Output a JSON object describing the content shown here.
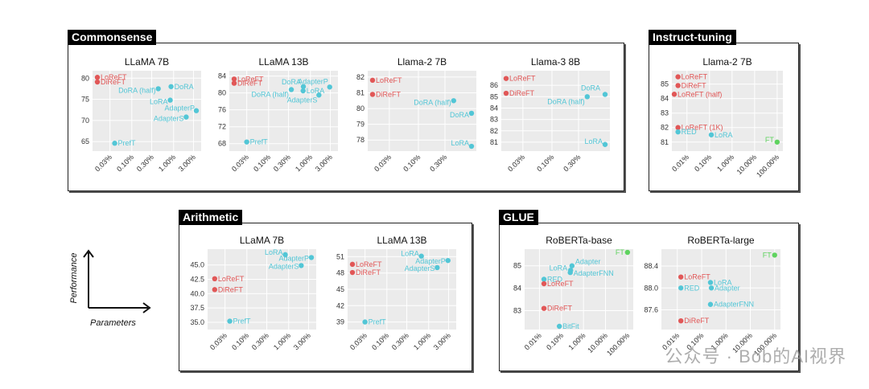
{
  "colors": {
    "red": "#e15757",
    "cyan": "#52c6d6",
    "green": "#5fd35f",
    "bg": "#ebebeb",
    "grid": "#ffffff"
  },
  "sections": {
    "commonsense": "Commonsense",
    "instruct": "Instruct-tuning",
    "arithmetic": "Arithmetic",
    "glue": "GLUE"
  },
  "legend": {
    "y": "Performance",
    "x": "Parameters"
  },
  "watermark": "公众号 · Bob的AI视界",
  "chart_data": [
    {
      "id": "cs1",
      "type": "scatter",
      "title": "LLaMA 7B",
      "xticks": [
        "0.03%",
        "0.10%",
        "0.30%",
        "1.00%",
        "3.00%"
      ],
      "xlog": [
        0.015,
        3.5
      ],
      "yticks": [
        65,
        70,
        75,
        80
      ],
      "ylim": [
        63.5,
        81
      ],
      "points": [
        {
          "name": "LoReFT",
          "x": 0.015,
          "y": 80.2,
          "c": "red"
        },
        {
          "name": "DiReFT",
          "x": 0.015,
          "y": 79.1,
          "c": "red"
        },
        {
          "name": "DoRA",
          "x": 0.87,
          "y": 78.0,
          "c": "cyan"
        },
        {
          "name": "DoRA (half)",
          "x": 0.43,
          "y": 77.5,
          "c": "cyan"
        },
        {
          "name": "LoRA",
          "x": 0.83,
          "y": 74.8,
          "c": "cyan"
        },
        {
          "name": "AdapterP",
          "x": 3.5,
          "y": 72.3,
          "c": "cyan"
        },
        {
          "name": "AdapterS",
          "x": 2.0,
          "y": 70.8,
          "c": "cyan"
        },
        {
          "name": "PrefT",
          "x": 0.039,
          "y": 64.6,
          "c": "cyan"
        }
      ]
    },
    {
      "id": "cs2",
      "type": "scatter",
      "title": "LLaMA 13B",
      "xticks": [
        "0.03%",
        "0.10%",
        "0.30%",
        "1.00%",
        "3.00%"
      ],
      "xlog": [
        0.015,
        3.5
      ],
      "yticks": [
        68,
        72,
        76,
        80,
        84
      ],
      "ylim": [
        67,
        84.5
      ],
      "points": [
        {
          "name": "LoReFT",
          "x": 0.015,
          "y": 83.3,
          "c": "red"
        },
        {
          "name": "DiReFT",
          "x": 0.015,
          "y": 82.3,
          "c": "red"
        },
        {
          "name": "AdapterP",
          "x": 2.9,
          "y": 81.4,
          "c": "cyan"
        },
        {
          "name": "DoRA",
          "x": 0.68,
          "y": 81.5,
          "c": "cyan"
        },
        {
          "name": "LoRA",
          "x": 0.67,
          "y": 80.5,
          "c": "cyan"
        },
        {
          "name": "DoRA (half)",
          "x": 0.35,
          "y": 80.8,
          "c": "cyan"
        },
        {
          "name": "AdapterS",
          "x": 1.6,
          "y": 79.5,
          "c": "cyan"
        },
        {
          "name": "PrefT",
          "x": 0.03,
          "y": 68.4,
          "c": "cyan"
        }
      ]
    },
    {
      "id": "cs3",
      "type": "scatter",
      "title": "Llama-2 7B",
      "xticks": [
        "0.03%",
        "0.10%",
        "0.30%"
      ],
      "xlog": [
        0.015,
        0.9
      ],
      "yticks": [
        78,
        79,
        80,
        81,
        82
      ],
      "ylim": [
        77.5,
        82.2
      ],
      "points": [
        {
          "name": "LoReFT",
          "x": 0.015,
          "y": 81.8,
          "c": "red"
        },
        {
          "name": "DiReFT",
          "x": 0.015,
          "y": 80.9,
          "c": "red"
        },
        {
          "name": "DoRA (half)",
          "x": 0.43,
          "y": 80.5,
          "c": "cyan"
        },
        {
          "name": "DoRA",
          "x": 0.9,
          "y": 79.7,
          "c": "cyan"
        },
        {
          "name": "LoRA",
          "x": 0.9,
          "y": 77.6,
          "c": "cyan"
        }
      ]
    },
    {
      "id": "cs4",
      "type": "scatter",
      "title": "Llama-3 8B",
      "xticks": [
        "0.03%",
        "0.10%",
        "0.30%"
      ],
      "xlog": [
        0.015,
        0.9
      ],
      "yticks": [
        81,
        82,
        83,
        84,
        85,
        86
      ],
      "ylim": [
        80.5,
        87
      ],
      "points": [
        {
          "name": "LoReFT",
          "x": 0.015,
          "y": 86.6,
          "c": "red"
        },
        {
          "name": "DiReFT",
          "x": 0.015,
          "y": 85.3,
          "c": "red"
        },
        {
          "name": "DoRA",
          "x": 0.9,
          "y": 85.2,
          "c": "cyan"
        },
        {
          "name": "DoRA (half)",
          "x": 0.43,
          "y": 85.0,
          "c": "cyan"
        },
        {
          "name": "LoRA",
          "x": 0.9,
          "y": 80.8,
          "c": "cyan"
        }
      ]
    },
    {
      "id": "it1",
      "type": "scatter",
      "title": "Llama-2 7B",
      "xticks": [
        "0.01%",
        "0.10%",
        "1.00%",
        "10.00%",
        "100.00%"
      ],
      "xlog": [
        0.0035,
        110
      ],
      "yticks": [
        81,
        82,
        83,
        84,
        85
      ],
      "ylim": [
        80.6,
        85.7
      ],
      "points": [
        {
          "name": "LoReFT",
          "x": 0.004,
          "y": 85.5,
          "c": "red"
        },
        {
          "name": "DiReFT",
          "x": 0.004,
          "y": 84.9,
          "c": "red"
        },
        {
          "name": "LoReFT (half)",
          "x": 0.002,
          "y": 84.3,
          "c": "red"
        },
        {
          "name": "LoReFT (1K)",
          "x": 0.004,
          "y": 82.0,
          "c": "red"
        },
        {
          "name": "RED",
          "x": 0.004,
          "y": 81.7,
          "c": "cyan"
        },
        {
          "name": "LoRA",
          "x": 0.12,
          "y": 81.5,
          "c": "cyan"
        },
        {
          "name": "FT",
          "x": 100,
          "y": 81.0,
          "c": "green"
        }
      ]
    },
    {
      "id": "ar1",
      "type": "scatter",
      "title": "LLaMA 7B",
      "xticks": [
        "0.03%",
        "0.10%",
        "0.30%",
        "1.00%",
        "3.00%"
      ],
      "xlog": [
        0.015,
        3.5
      ],
      "yticks": [
        35.0,
        37.5,
        40.0,
        42.5,
        45.0
      ],
      "ylim": [
        34.3,
        47.2
      ],
      "points": [
        {
          "name": "LoRA",
          "x": 0.83,
          "y": 46.8,
          "c": "cyan"
        },
        {
          "name": "AdapterP",
          "x": 3.5,
          "y": 46.3,
          "c": "cyan"
        },
        {
          "name": "AdapterS",
          "x": 2.0,
          "y": 44.9,
          "c": "cyan"
        },
        {
          "name": "LoReFT",
          "x": 0.017,
          "y": 42.6,
          "c": "red"
        },
        {
          "name": "DiReFT",
          "x": 0.017,
          "y": 40.7,
          "c": "red"
        },
        {
          "name": "PrefT",
          "x": 0.039,
          "y": 35.2,
          "c": "cyan"
        }
      ]
    },
    {
      "id": "ar2",
      "type": "scatter",
      "title": "LLaMA 13B",
      "xticks": [
        "0.03%",
        "0.10%",
        "0.30%",
        "1.00%",
        "3.00%"
      ],
      "xlog": [
        0.015,
        3.5
      ],
      "yticks": [
        39,
        42,
        45,
        48,
        51
      ],
      "ylim": [
        38.2,
        51.8
      ],
      "points": [
        {
          "name": "LoRA",
          "x": 0.67,
          "y": 51.1,
          "c": "cyan"
        },
        {
          "name": "AdapterP",
          "x": 2.9,
          "y": 50.3,
          "c": "cyan"
        },
        {
          "name": "AdapterS",
          "x": 1.6,
          "y": 49.0,
          "c": "cyan"
        },
        {
          "name": "LoReFT",
          "x": 0.015,
          "y": 49.6,
          "c": "red"
        },
        {
          "name": "DiReFT",
          "x": 0.015,
          "y": 48.1,
          "c": "red"
        },
        {
          "name": "PrefT",
          "x": 0.03,
          "y": 39.0,
          "c": "cyan"
        }
      ]
    },
    {
      "id": "gl1",
      "type": "scatter",
      "title": "RoBERTa-base",
      "xticks": [
        "0.01%",
        "0.10%",
        "1.00%",
        "10.00%",
        "100.00%"
      ],
      "xlog": [
        0.0035,
        110
      ],
      "yticks": [
        83,
        84,
        85
      ],
      "ylim": [
        82.3,
        85.6
      ],
      "points": [
        {
          "name": "FT",
          "x": 100,
          "y": 85.6,
          "c": "green"
        },
        {
          "name": "Adapter",
          "x": 0.3,
          "y": 85.0,
          "c": "cyan"
        },
        {
          "name": "LoRA",
          "x": 0.26,
          "y": 84.8,
          "c": "cyan"
        },
        {
          "name": "AdapterFNN",
          "x": 0.25,
          "y": 84.7,
          "c": "cyan"
        },
        {
          "name": "RED",
          "x": 0.016,
          "y": 84.4,
          "c": "cyan"
        },
        {
          "name": "LoReFT",
          "x": 0.016,
          "y": 84.2,
          "c": "red"
        },
        {
          "name": "DiReFT",
          "x": 0.016,
          "y": 83.1,
          "c": "red"
        },
        {
          "name": "BitFit",
          "x": 0.08,
          "y": 82.3,
          "c": "cyan"
        }
      ]
    },
    {
      "id": "gl2",
      "type": "scatter",
      "title": "RoBERTa-large",
      "xticks": [
        "0.01%",
        "0.10%",
        "1.00%",
        "10.00%",
        "100.00%"
      ],
      "xlog": [
        0.0035,
        110
      ],
      "yticks": [
        87.6,
        88.0,
        88.4
      ],
      "ylim": [
        87.3,
        88.65
      ],
      "points": [
        {
          "name": "FT",
          "x": 100,
          "y": 88.6,
          "c": "green"
        },
        {
          "name": "LoReFT",
          "x": 0.014,
          "y": 88.2,
          "c": "red"
        },
        {
          "name": "LoRA",
          "x": 0.23,
          "y": 88.1,
          "c": "cyan"
        },
        {
          "name": "RED",
          "x": 0.014,
          "y": 88.0,
          "c": "cyan"
        },
        {
          "name": "Adapter",
          "x": 0.25,
          "y": 88.0,
          "c": "cyan"
        },
        {
          "name": "AdapterFNN",
          "x": 0.23,
          "y": 87.7,
          "c": "cyan"
        },
        {
          "name": "DiReFT",
          "x": 0.014,
          "y": 87.4,
          "c": "red"
        }
      ]
    }
  ]
}
